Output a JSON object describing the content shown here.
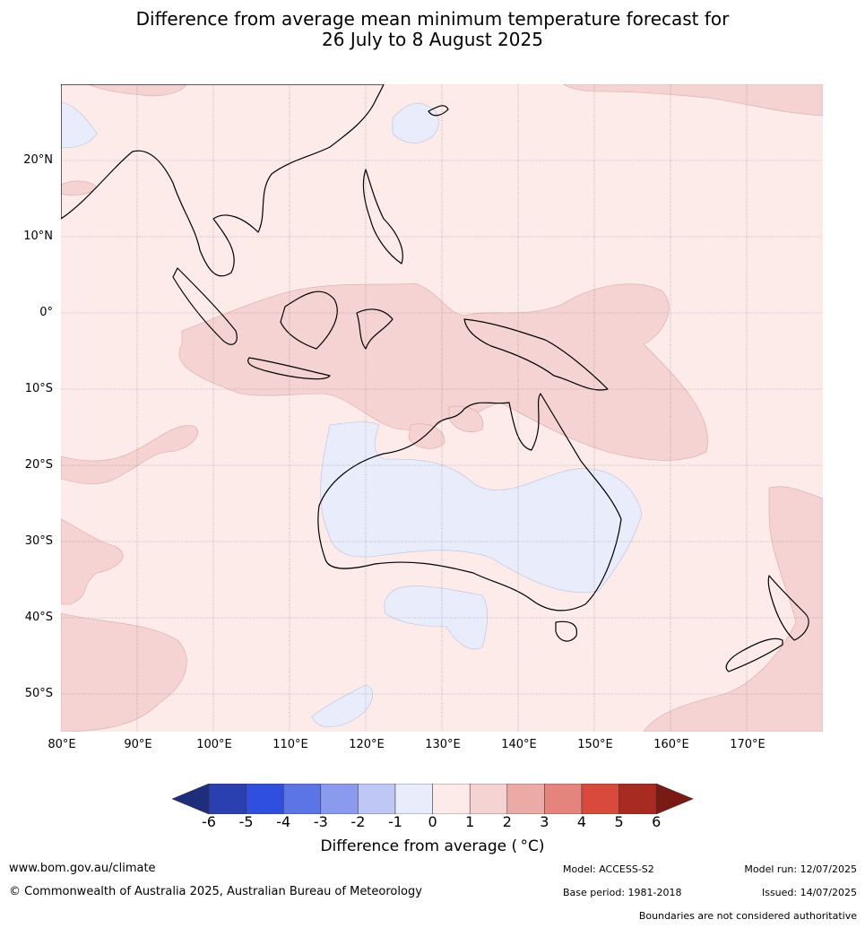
{
  "title": {
    "line1": "Difference from average mean minimum temperature forecast for",
    "line2": "26 July to 8 August 2025"
  },
  "map": {
    "lon_range": [
      80,
      180
    ],
    "lat_range": [
      -55,
      30
    ],
    "lat_labels": [
      "20°N",
      "10°N",
      "0°",
      "10°S",
      "20°S",
      "30°S",
      "40°S",
      "50°S"
    ],
    "lon_labels": [
      "80°E",
      "90°E",
      "100°E",
      "110°E",
      "120°E",
      "130°E",
      "140°E",
      "150°E",
      "160°E",
      "170°E"
    ],
    "background_category": "0 to 1",
    "regions": {
      "positive_1_2": [
        "Maritime Continent",
        "Northern Australian waters",
        "Southwest Pacific",
        "Southern Indian Ocean",
        "Tasman Sea"
      ],
      "negative_0_1": [
        "Inland Australia",
        "Great Australian Bight",
        "East China Sea",
        "Southern Ocean south of Australia"
      ]
    }
  },
  "colorbar": {
    "label": "Difference from average ( °C)",
    "ticks": [
      "-6",
      "-5",
      "-4",
      "-3",
      "-2",
      "-1",
      "0",
      "1",
      "2",
      "3",
      "4",
      "5",
      "6"
    ],
    "colors": [
      "#1f2e7a",
      "#2a3fb0",
      "#2f4fde",
      "#5b74e6",
      "#8a9bed",
      "#bfc7f4",
      "#e8ecfb",
      "#fcebe9",
      "#f4d3d2",
      "#ecaaa6",
      "#e5847d",
      "#d94a3d",
      "#a82b21",
      "#7a1a15"
    ]
  },
  "footer": {
    "website": "www.bom.gov.au/climate",
    "copyright": "© Commonwealth of Australia 2025, Australian Bureau of Meteorology",
    "model": "Model: ACCESS-S2",
    "base_period": "Base period: 1981-2018",
    "model_run": "Model run: 12/07/2025",
    "issued": "Issued: 14/07/2025",
    "disclaimer": "Boundaries are not considered authoritative"
  }
}
